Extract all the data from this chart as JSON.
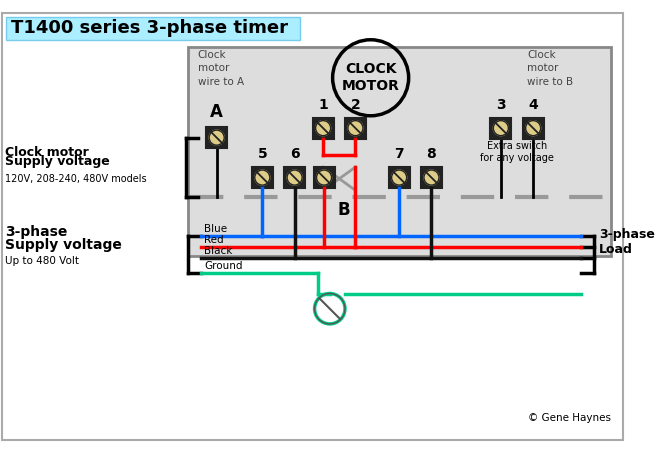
{
  "title": "T1400 series 3-phase timer",
  "title_bg": "#aaeeff",
  "background": "#ffffff",
  "clock_motor_wire_a": "Clock\nmotor\nwire to A",
  "clock_motor_wire_b": "Clock\nmotor\nwire to B",
  "extra_switch_label": "Extra switch\nfor any voltage",
  "clock_motor_supply_line1": "Clock motor",
  "clock_motor_supply_line2": "Supply voltage",
  "clock_motor_models": "120V, 208-240, 480V models",
  "three_phase_supply_line1": "3-phase",
  "three_phase_supply_line2": "Supply voltage",
  "three_phase_up_to": "Up to 480 Volt",
  "three_phase_load": "3-phase\nLoad",
  "wire_labels": [
    "Blue",
    "Red",
    "Black",
    "Ground"
  ],
  "wire_colors": [
    "#0066ff",
    "#ff0000",
    "#111111",
    "#00cc88"
  ],
  "copyright": "© Gene Haynes",
  "terminal_fill": "#ddcc88",
  "terminal_border": "#222222",
  "gray_box_color": "#dddddd",
  "gray_box_border": "#888888",
  "gray_line_color": "#999999"
}
